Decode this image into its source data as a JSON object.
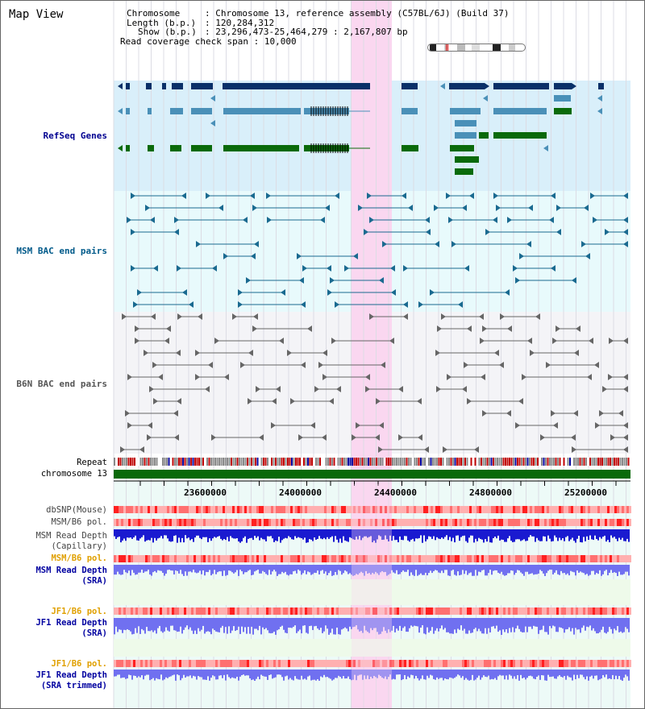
{
  "header": {
    "title": "Map View",
    "chromosome_key": "Chromosome",
    "chromosome_value": "Chromosome 13, reference assembly (C57BL/6J) (Build 37)",
    "length_key": "Length (b.p.)",
    "length_value": "120,284,312",
    "show_key": "Show (b.p.)",
    "show_value": "23,296,473-25,464,279 : 2,167,807 bp",
    "coverage_key": "Read coverage check span",
    "coverage_value": "10,000"
  },
  "tracks": {
    "refseq": "RefSeq Genes",
    "msm_bac": "MSM BAC end pairs",
    "b6n_bac": "B6N BAC end pairs",
    "repeat": "Repeat",
    "chromosome": "chromosome 13"
  },
  "axis": {
    "ticks": [
      "23600000",
      "24000000",
      "24400000",
      "24800000",
      "25200000"
    ]
  },
  "lower_tracks": {
    "dbsnp": "dbSNP(Mouse)",
    "msm_b6_pol_1": "MSM/B6 pol.",
    "msm_read_depth_cap_1": "MSM Read Depth",
    "msm_read_depth_cap_2": "(Capillary)",
    "msm_b6_pol_2": "MSM/B6 pol.",
    "msm_read_depth_sra_1": "MSM Read Depth",
    "msm_read_depth_sra_2": "(SRA)",
    "jf1_b6_pol_1": "JF1/B6 pol.",
    "jf1_read_depth_1": "JF1 Read Depth",
    "jf1_read_depth_2": "(SRA)",
    "jf1_b6_pol_2": "JF1/B6 pol.",
    "jf1_read_depth_trim_1": "JF1 Read Depth",
    "jf1_read_depth_trim_2": "(SRA trimmed)"
  },
  "colors": {
    "refseq_bg": "#d9effa",
    "msm_bg": "#e8fafc",
    "b6n_bg": "#f4f4f7",
    "highlight": "#fad7f0",
    "gene_dark": "#0a3068",
    "gene_light": "#4a90b8",
    "gene_green": "#0a6a0a",
    "orange_label": "#e0a000",
    "blue_label": "#0000a0"
  }
}
